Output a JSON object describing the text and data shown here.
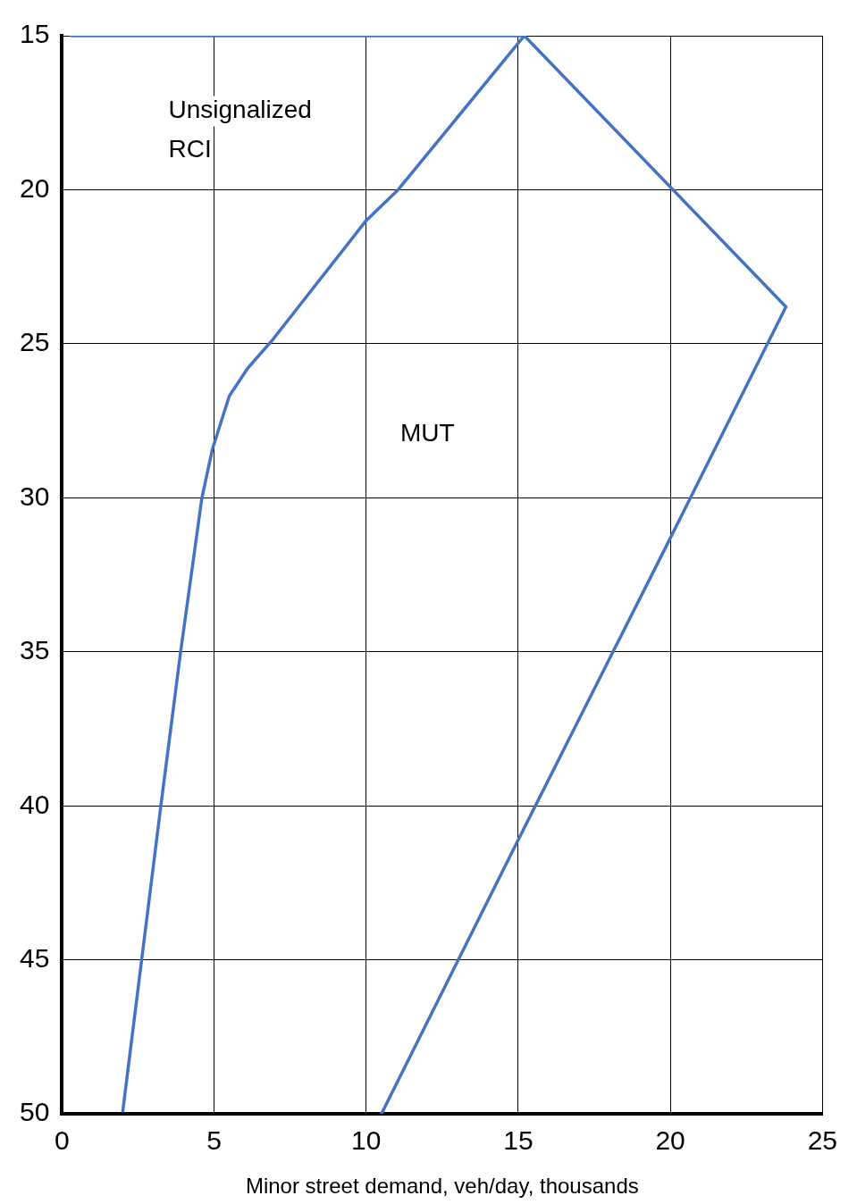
{
  "chart_data": {
    "type": "line",
    "xlabel": "Minor street demand, veh/day, thousands",
    "xlim": [
      0,
      25
    ],
    "xticks": [
      0,
      5,
      10,
      15,
      20,
      25
    ],
    "ylim": [
      50,
      15
    ],
    "yticks": [
      15,
      20,
      25,
      30,
      35,
      40,
      45,
      50
    ],
    "grid": true,
    "legend": false,
    "marker": "none",
    "line_style": "solid",
    "series": [
      {
        "color": "#4472c4",
        "x": [
          0.3,
          15.2,
          23.8,
          19.9,
          15.0,
          10.5
        ],
        "values": [
          15,
          15,
          23.8,
          31.5,
          41.1,
          50
        ]
      },
      {
        "color": "#4472c4",
        "x": [
          15.2,
          11.05,
          10.0,
          6.9,
          6.1,
          5.5,
          4.95,
          4.6,
          3.9,
          3.25,
          2.0
        ],
        "values": [
          15,
          20,
          21,
          24.9,
          25.8,
          26.7,
          28.4,
          30,
          35,
          40,
          49.9
        ]
      }
    ],
    "annotations": [
      "Unsignalized RCI",
      "MUT"
    ]
  }
}
